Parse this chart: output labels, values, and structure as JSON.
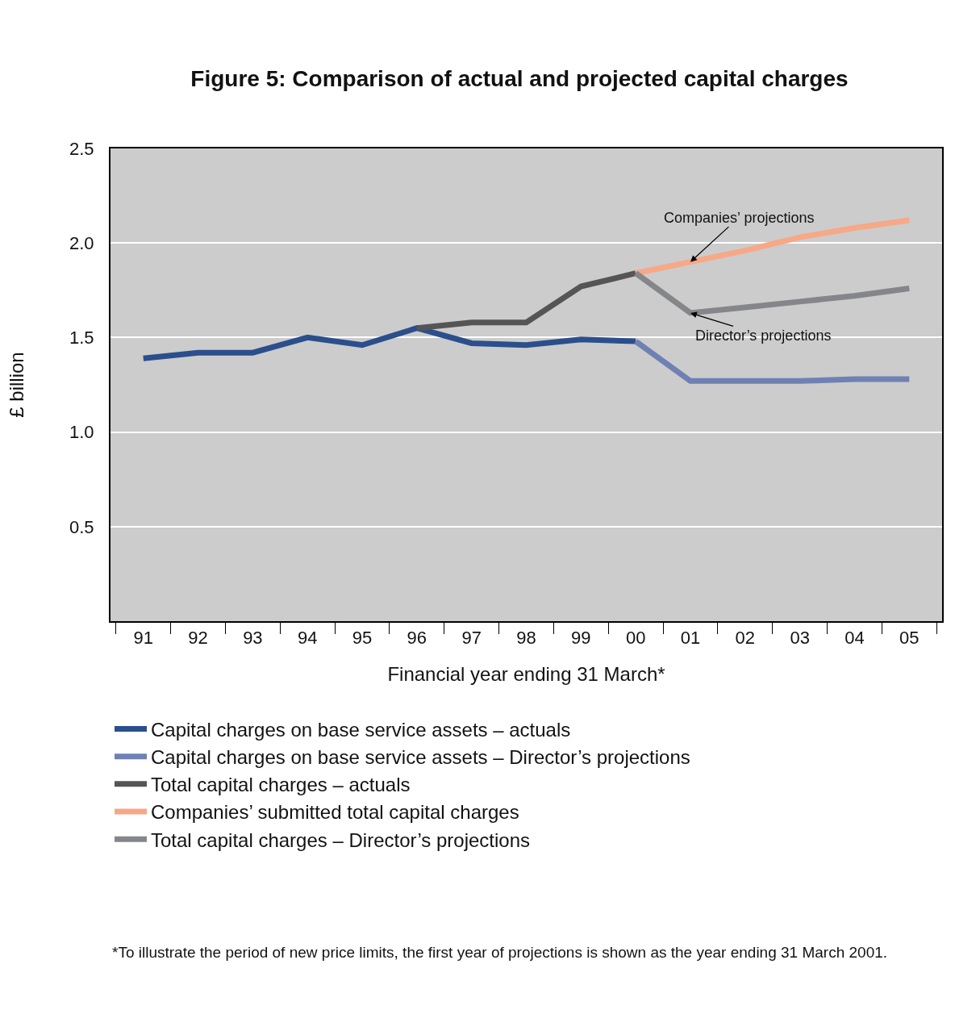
{
  "chart_data": {
    "type": "line",
    "title": "Figure 5: Comparison of actual and projected capital charges",
    "xlabel": "Financial year ending 31 March*",
    "ylabel": "£ billion",
    "categories": [
      "91",
      "92",
      "93",
      "94",
      "95",
      "96",
      "97",
      "98",
      "99",
      "00",
      "01",
      "02",
      "03",
      "04",
      "05"
    ],
    "series": [
      {
        "name": "Capital charges on base service assets – actuals",
        "color": "#2b4f8c",
        "values": [
          1.39,
          1.42,
          1.42,
          1.5,
          1.46,
          1.55,
          1.47,
          1.46,
          1.49,
          1.48,
          null,
          null,
          null,
          null,
          null
        ]
      },
      {
        "name": "Capital charges on base service assets – Director’s projections",
        "color": "#6f80b4",
        "values": [
          null,
          null,
          null,
          null,
          null,
          null,
          null,
          null,
          null,
          1.48,
          1.27,
          1.27,
          1.27,
          1.28,
          1.28
        ]
      },
      {
        "name": "Total capital charges – actuals",
        "color": "#555555",
        "values": [
          null,
          null,
          null,
          null,
          null,
          1.55,
          1.58,
          1.58,
          1.77,
          1.84,
          null,
          null,
          null,
          null,
          null
        ]
      },
      {
        "name": "Companies’ submitted total capital charges",
        "color": "#f7a886",
        "values": [
          null,
          null,
          null,
          null,
          null,
          null,
          null,
          null,
          null,
          1.84,
          1.9,
          1.96,
          2.03,
          2.08,
          2.12
        ]
      },
      {
        "name": "Total capital charges – Director’s projections",
        "color": "#85868a",
        "values": [
          null,
          null,
          null,
          null,
          null,
          null,
          null,
          null,
          null,
          1.84,
          1.63,
          1.66,
          1.69,
          1.72,
          1.76
        ]
      }
    ],
    "ylim": [
      0,
      2.5
    ],
    "yticks": [
      0.5,
      {
        "value": 1,
        "label": "1.0"
      },
      1.5,
      {
        "value": 2,
        "label": "2.0"
      },
      2.5
    ],
    "grid": "y",
    "legend": "bottom",
    "marker": "none",
    "line_style": "solid",
    "annotations": [
      {
        "text": "Companies’ projections",
        "x": "01",
        "y": 1.9
      },
      {
        "text": "Director’s projections",
        "x": "01",
        "y": 1.63
      },
      "*To illustrate the period of new price limits, the first year of projections is shown as the year ending 31 March 2001."
    ]
  }
}
